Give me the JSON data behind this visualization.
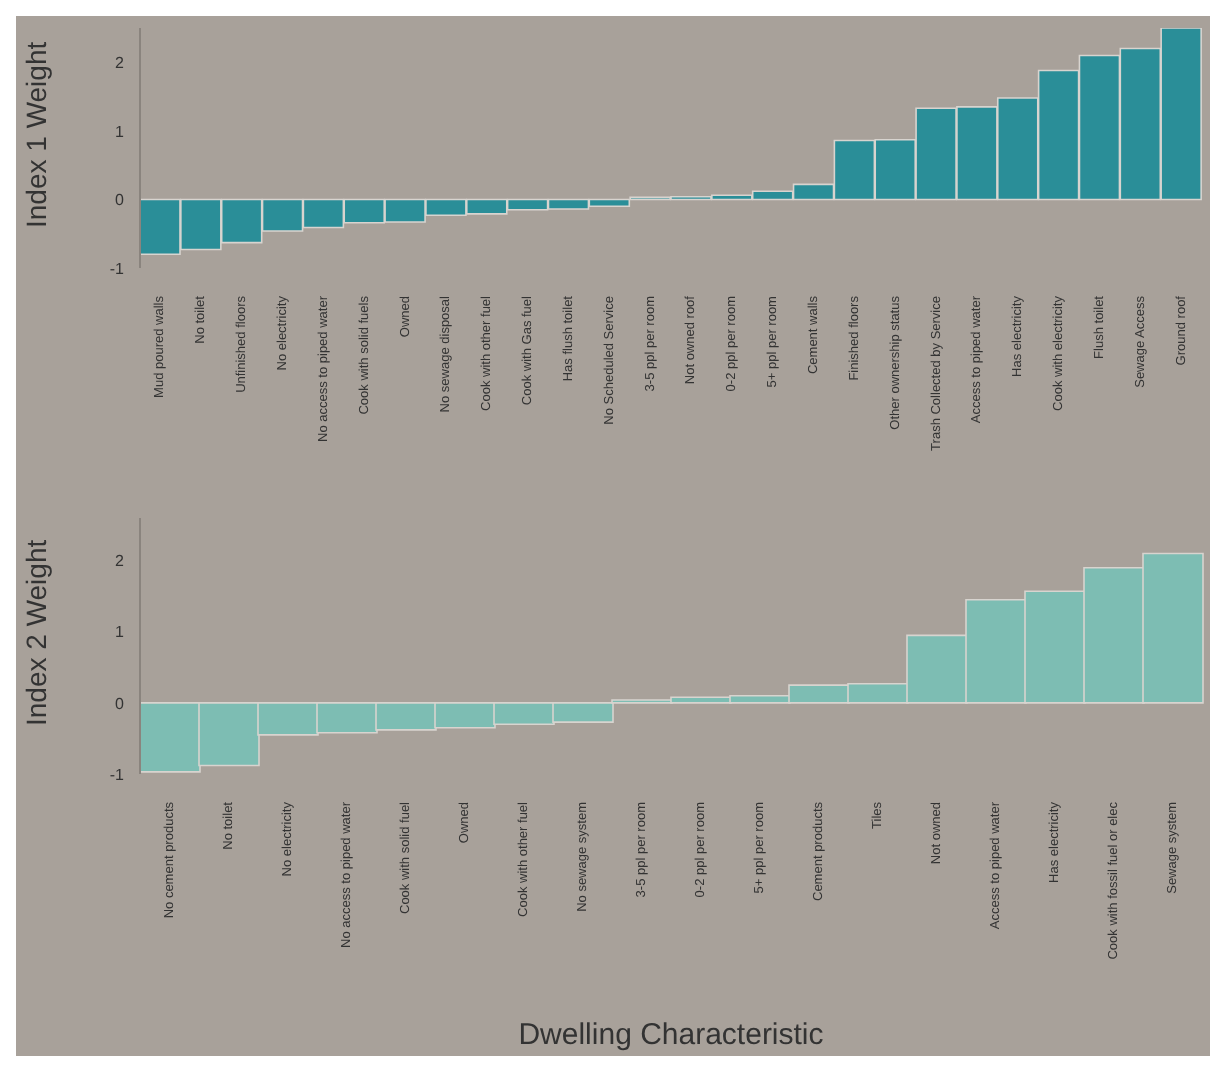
{
  "chart_data": [
    {
      "type": "bar",
      "ylabel": "Index 1 Weight",
      "color": "#2a8e98",
      "ylim": [
        -1,
        2.5
      ],
      "yticks": [
        -1,
        0,
        1,
        2
      ],
      "categories": [
        "Mud poured walls",
        "No toilet",
        "Unfinished floors",
        "No electricity",
        "No access to piped water",
        "Cook with solid fuels",
        "Owned",
        "No sewage disposal",
        "Cook with other fuel",
        "Cook with Gas fuel",
        "Has flush toilet",
        "No Scheduled Service",
        "3-5 ppl per room",
        "Not owned roof",
        "0-2 ppl per room",
        "5+ ppl per room",
        "Cement walls",
        "Finished floors",
        "Other ownership status",
        "Trash Collected by Service",
        "Access to piped water",
        "Has electricity",
        "Cook with electricity",
        "Flush toilet",
        "Sewage Access",
        "Ground roof"
      ],
      "values": [
        -0.8,
        -0.73,
        -0.63,
        -0.46,
        -0.41,
        -0.34,
        -0.33,
        -0.23,
        -0.21,
        -0.15,
        -0.14,
        -0.1,
        0.03,
        0.04,
        0.06,
        0.12,
        0.22,
        0.86,
        0.87,
        1.33,
        1.35,
        1.48,
        1.88,
        2.1,
        2.2,
        2.5
      ]
    },
    {
      "type": "bar",
      "ylabel": "Index 2 Weight",
      "xlabel": "Dwelling Characteristic",
      "color": "#7dbdb3",
      "ylim": [
        -1,
        2.6
      ],
      "yticks": [
        -1,
        0,
        1,
        2
      ],
      "categories": [
        "No cement products",
        "No toilet",
        "No electricity",
        "No access to piped water",
        "Cook with solid fuel",
        "Owned",
        "Cook with other fuel",
        "No sewage system",
        "3-5 ppl per room",
        "0-2 ppl per room",
        "5+ ppl per room",
        "Cement products",
        "Tiles",
        "Not owned",
        "Access to piped water",
        "Has electricity",
        "Cook with fossil fuel or elec",
        "Sewage system"
      ],
      "values": [
        -0.97,
        -0.88,
        -0.45,
        -0.42,
        -0.38,
        -0.35,
        -0.3,
        -0.27,
        0.04,
        0.08,
        0.1,
        0.25,
        0.27,
        0.95,
        1.45,
        1.57,
        1.9,
        2.1
      ]
    }
  ]
}
